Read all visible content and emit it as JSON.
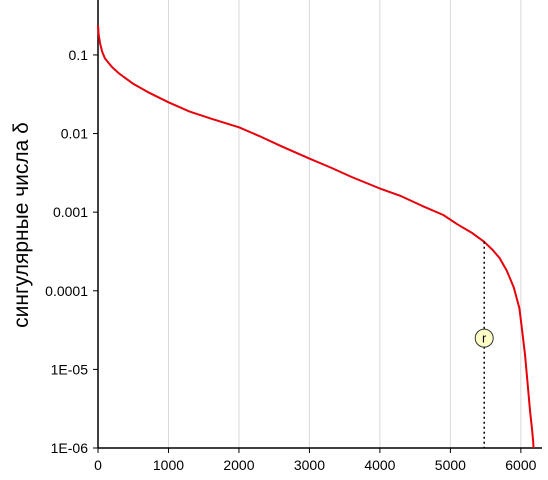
{
  "chart_data": {
    "type": "line",
    "title": "",
    "xlabel": "",
    "ylabel": "сингулярные числа δ",
    "xlim": [
      0,
      6300
    ],
    "ylim": [
      1e-06,
      0.5
    ],
    "yscale": "log",
    "grid": {
      "x": true,
      "y": false
    },
    "xticks": [
      0,
      1000,
      2000,
      3000,
      4000,
      5000,
      6000
    ],
    "xtick_labels": [
      "0",
      "1000",
      "2000",
      "3000",
      "4000",
      "5000",
      "6000"
    ],
    "yticks": [
      0.1,
      0.01,
      0.001,
      0.0001,
      1e-05,
      1e-06
    ],
    "ytick_labels": [
      "0.1",
      "0.01",
      "0.001",
      "0.0001",
      "1E-05",
      "1E-06"
    ],
    "series": [
      {
        "color": "#e8000b",
        "x": [
          0,
          10,
          30,
          60,
          100,
          200,
          300,
          500,
          700,
          1000,
          1300,
          1600,
          2000,
          2300,
          2600,
          3000,
          3300,
          3600,
          4000,
          4300,
          4600,
          4900,
          5100,
          5300,
          5480,
          5600,
          5700,
          5800,
          5900,
          5980,
          6020,
          6060,
          6100,
          6130,
          6160,
          6175,
          6180
        ],
        "y": [
          0.24,
          0.18,
          0.14,
          0.11,
          0.09,
          0.07,
          0.058,
          0.043,
          0.034,
          0.025,
          0.019,
          0.0155,
          0.012,
          0.0092,
          0.0069,
          0.0048,
          0.0037,
          0.0028,
          0.002,
          0.0016,
          0.0012,
          0.00092,
          0.0007,
          0.00055,
          0.00042,
          0.00033,
          0.00026,
          0.00018,
          0.00011,
          6e-05,
          3e-05,
          1.5e-05,
          6e-06,
          3e-06,
          1.7e-06,
          1.2e-06,
          1e-06
        ]
      }
    ],
    "annotations": [
      {
        "label": "r",
        "x": 5480,
        "y_from": 0.00042,
        "y_to": 1e-06,
        "y_label": 2.5e-05,
        "style": "dotted-vertical"
      }
    ]
  }
}
